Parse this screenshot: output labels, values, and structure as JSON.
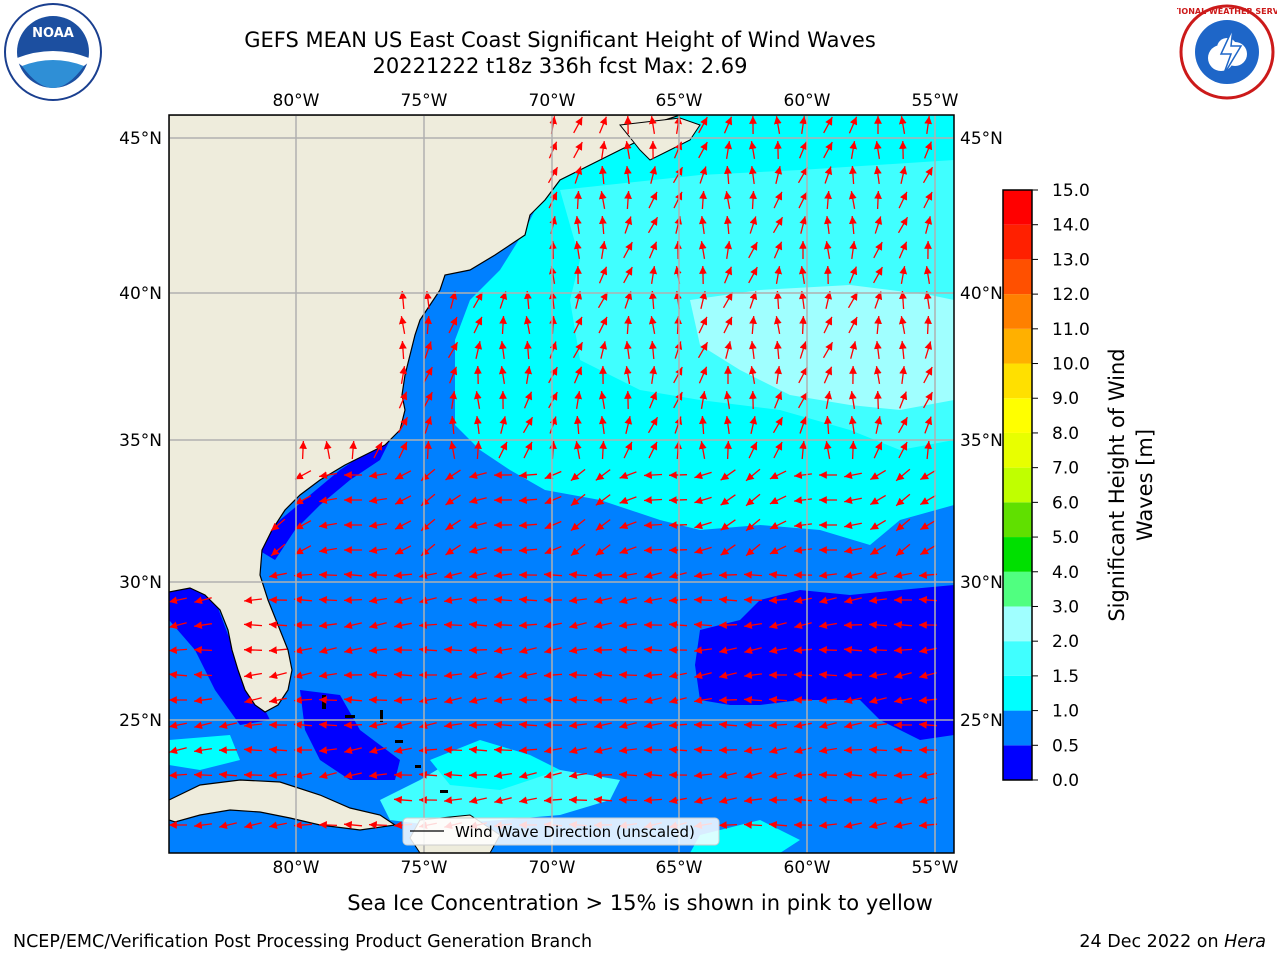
{
  "title": {
    "line1": "GEFS MEAN US East Coast Significant Height of Wind Waves",
    "line2": "20221222 t18z 336h fcst   Max: 2.69"
  },
  "logos": {
    "noaa_text": "NOAA",
    "nws_text": "NATIONAL WEATHER SERVICE"
  },
  "map": {
    "lon_labels": [
      "80°W",
      "75°W",
      "70°W",
      "65°W",
      "60°W",
      "55°W"
    ],
    "lat_labels": [
      "45°N",
      "40°N",
      "35°N",
      "30°N",
      "25°N"
    ],
    "lon_range": [
      -85,
      -55
    ],
    "lat_range": [
      20.5,
      46
    ],
    "legend_label": "Wind Wave Direction (unscaled)",
    "land_color": "#eeecdc",
    "arrow_color": "#ff0000",
    "grid_color": "#b0b0b0"
  },
  "colorbar": {
    "label_line1": "Significant Height of Wind",
    "label_line2": "Waves [m]",
    "ticks": [
      "0.0",
      "0.5",
      "1.0",
      "1.5",
      "2.0",
      "3.0",
      "4.0",
      "5.0",
      "6.0",
      "7.0",
      "8.0",
      "9.0",
      "10.0",
      "11.0",
      "12.0",
      "13.0",
      "14.0",
      "15.0"
    ],
    "colors": [
      "#0000ff",
      "#0080ff",
      "#00ffff",
      "#40ffff",
      "#a0ffff",
      "#50ff80",
      "#00e000",
      "#60e000",
      "#c0ff00",
      "#e8ff00",
      "#ffff00",
      "#ffe000",
      "#ffb000",
      "#ff8000",
      "#ff5000",
      "#ff2000",
      "#ff0000"
    ]
  },
  "note": "Sea Ice Concentration > 15% is shown in pink to yellow",
  "footer": {
    "left": "NCEP/EMC/Verification Post Processing Product Generation Branch",
    "right_prefix": "24 Dec 2022 on ",
    "right_host": "Hera"
  }
}
